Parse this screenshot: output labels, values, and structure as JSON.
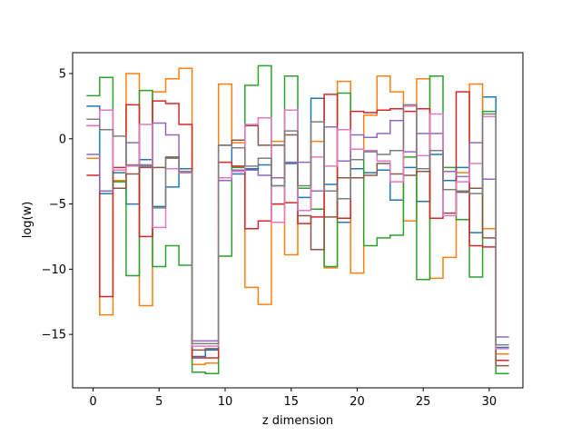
{
  "chart_data": {
    "type": "line",
    "drawstyle": "steps-mid",
    "title": "",
    "xlabel": "z dimension",
    "ylabel": "log(w)",
    "xlim": [
      -1.55,
      32.55
    ],
    "ylim": [
      -19.1,
      6.6
    ],
    "xticks": [
      0,
      5,
      10,
      15,
      20,
      25,
      30
    ],
    "yticks": [
      5,
      0,
      -5,
      -10,
      -15
    ],
    "ytick_labels": [
      "5",
      "0",
      "−5",
      "−10",
      "−15"
    ],
    "grid": false,
    "legend": false,
    "x": [
      0,
      1,
      2,
      3,
      4,
      5,
      6,
      7,
      8,
      9,
      10,
      11,
      12,
      13,
      14,
      15,
      16,
      17,
      18,
      19,
      20,
      21,
      22,
      23,
      24,
      25,
      26,
      27,
      28,
      29,
      30,
      31
    ],
    "series": [
      {
        "color": "#1f77b4",
        "values": [
          2.5,
          -4.2,
          -2.6,
          -5.0,
          -1.6,
          -5.2,
          -3.7,
          -2.3,
          -16.7,
          -16.2,
          -0.5,
          -2.7,
          -2.3,
          -2.0,
          -3.6,
          -1.9,
          -4.5,
          3.1,
          -3.5,
          -6.4,
          -2.3,
          -2.6,
          -2.4,
          -4.7,
          -2.2,
          -4.8,
          -1.2,
          -3.2,
          -2.2,
          -7.2,
          3.2,
          -16.0
        ]
      },
      {
        "color": "#ff7f0e",
        "values": [
          -1.5,
          -13.5,
          -3.2,
          5.0,
          -12.8,
          3.6,
          4.6,
          5.4,
          -17.3,
          -17.2,
          4.2,
          -0.3,
          -11.4,
          -12.7,
          -0.2,
          -8.9,
          -5.5,
          -0.2,
          -9.9,
          4.4,
          -10.3,
          1.8,
          4.8,
          3.6,
          -6.3,
          4.6,
          -10.7,
          -9.1,
          -2.6,
          4.2,
          -6.9,
          -16.5
        ]
      },
      {
        "color": "#2ca02c",
        "values": [
          3.3,
          4.7,
          -3.3,
          -10.5,
          3.7,
          -9.8,
          -8.2,
          -9.7,
          -17.9,
          -18.0,
          -9.0,
          -2.2,
          4.1,
          5.6,
          -5.0,
          4.8,
          -3.8,
          -5.4,
          -9.8,
          3.5,
          -1.6,
          -8.2,
          -7.6,
          -7.4,
          -1.4,
          -10.8,
          4.8,
          -2.2,
          -6.2,
          -10.6,
          2.1,
          -18.0
        ]
      },
      {
        "color": "#d62728",
        "values": [
          -2.8,
          -12.1,
          -2.2,
          2.6,
          -7.5,
          2.9,
          2.7,
          1.1,
          -16.8,
          -16.8,
          -1.8,
          -2.1,
          -6.9,
          -6.3,
          -5.0,
          -4.9,
          -6.5,
          -6.0,
          3.4,
          -6.1,
          2.1,
          2.0,
          2.2,
          2.3,
          2.1,
          2.3,
          -6.1,
          -5.7,
          3.6,
          -8.2,
          -8.3,
          -17.0
        ]
      },
      {
        "color": "#9467bd",
        "values": [
          -1.2,
          -4.0,
          -2.4,
          -0.3,
          -2.0,
          1.2,
          0.3,
          -2.6,
          -15.5,
          -15.5,
          -3.2,
          -2.4,
          -2.4,
          -2.8,
          -3.0,
          -1.8,
          -1.8,
          -4.0,
          0.9,
          -1.7,
          0.3,
          0.1,
          0.4,
          1.4,
          -1.0,
          0.4,
          0.4,
          -2.5,
          -2.9,
          -0.3,
          -3.1,
          -15.2
        ]
      },
      {
        "color": "#8c564b",
        "values": [
          1.0,
          0.7,
          -3.8,
          -2.7,
          -2.2,
          -2.2,
          -1.4,
          -2.6,
          -16.2,
          -16.1,
          -0.5,
          -0.1,
          1.0,
          -0.5,
          -0.5,
          0.3,
          -5.9,
          -8.5,
          -6.0,
          -3.0,
          -3.0,
          -2.8,
          -1.9,
          -2.7,
          -2.8,
          -2.5,
          -0.9,
          -5.7,
          -4.1,
          -3.8,
          -7.6,
          -17.4
        ]
      },
      {
        "color": "#e377c2",
        "values": [
          1.0,
          2.2,
          -2.4,
          -2.1,
          1.1,
          -6.8,
          -2.3,
          -2.6,
          -15.9,
          -15.9,
          -3.0,
          -2.5,
          1.1,
          1.6,
          -6.4,
          2.2,
          -5.5,
          -1.4,
          -2.1,
          0.7,
          -0.8,
          -0.9,
          -1.7,
          -3.3,
          2.5,
          -1.3,
          1.9,
          -5.9,
          -3.3,
          -1.9,
          1.7,
          -16.1
        ]
      },
      {
        "color": "#7f7f7f",
        "values": [
          1.5,
          0.7,
          0.2,
          -2.0,
          -2.1,
          -5.3,
          -1.5,
          -2.5,
          -15.7,
          -15.7,
          -0.5,
          -0.7,
          -2.1,
          -1.5,
          -3.6,
          0.6,
          -3.6,
          1.3,
          -4.0,
          -4.6,
          -1.6,
          -1.0,
          -1.2,
          -0.9,
          2.6,
          -2.3,
          -0.9,
          -3.9,
          -4.0,
          -4.2,
          1.9,
          -15.8
        ]
      }
    ]
  }
}
